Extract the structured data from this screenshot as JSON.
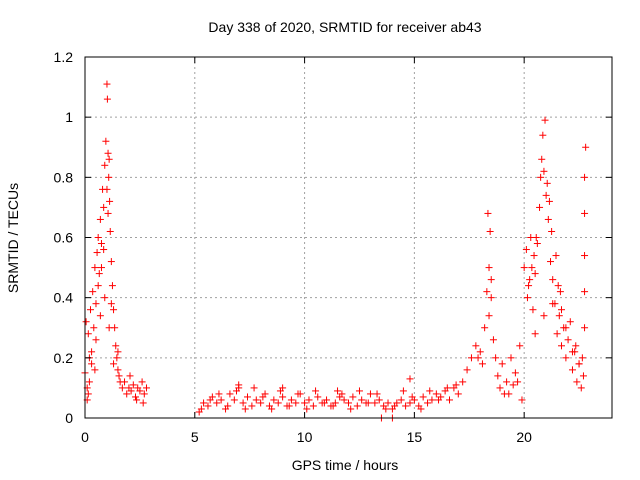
{
  "chart_data": {
    "type": "scatter",
    "title": "Day 338 of 2020, SRMTID for receiver ab43",
    "xlabel": "GPS time / hours",
    "ylabel": "SRMTID / TECUs",
    "xlim": [
      0,
      24
    ],
    "ylim": [
      0,
      1.2
    ],
    "xticks": [
      0,
      5,
      10,
      15,
      20
    ],
    "xtick_labels": [
      "0",
      "5",
      "10",
      "15",
      "20"
    ],
    "yticks": [
      0,
      0.2,
      0.4,
      0.6,
      0.8,
      1.0,
      1.2
    ],
    "ytick_labels": [
      "0",
      "0.2",
      "0.4",
      "0.6",
      "0.8",
      "1",
      "1.2"
    ],
    "grid": true,
    "marker": "+",
    "color": "#ff0000",
    "series": [
      {
        "name": "SRMTID",
        "x": [
          0.0,
          0.05,
          0.1,
          0.15,
          0.2,
          0.25,
          0.3,
          0.35,
          0.4,
          0.45,
          0.5,
          0.55,
          0.6,
          0.65,
          0.7,
          0.75,
          0.8,
          0.85,
          0.9,
          0.95,
          1.0,
          1.02,
          1.05,
          1.08,
          1.1,
          1.12,
          1.15,
          1.2,
          1.25,
          1.3,
          1.35,
          1.4,
          1.45,
          1.5,
          1.55,
          1.6,
          1.7,
          1.8,
          1.9,
          2.0,
          2.1,
          2.2,
          2.3,
          2.4,
          2.5,
          2.6,
          2.7,
          2.8,
          0.1,
          0.2,
          0.3,
          0.5,
          0.7,
          0.9,
          1.1,
          1.3,
          0.15,
          0.45,
          0.85,
          1.05,
          0.6,
          0.75,
          1.0,
          1.2,
          1.5,
          2.05,
          2.35,
          2.65,
          5.2,
          5.4,
          5.6,
          5.8,
          6.0,
          6.2,
          6.4,
          6.6,
          6.8,
          7.0,
          7.2,
          7.4,
          7.6,
          7.8,
          8.0,
          8.2,
          8.4,
          8.6,
          8.8,
          9.0,
          9.2,
          9.4,
          9.6,
          9.8,
          10.0,
          10.2,
          10.4,
          10.6,
          10.8,
          11.0,
          11.2,
          11.4,
          11.6,
          11.8,
          12.0,
          12.2,
          12.4,
          12.6,
          12.8,
          13.0,
          13.2,
          13.4,
          13.6,
          13.8,
          14.0,
          14.2,
          14.4,
          14.6,
          14.8,
          15.0,
          15.2,
          15.4,
          15.6,
          15.8,
          16.0,
          16.2,
          16.4,
          16.6,
          16.8,
          17.0,
          5.3,
          5.7,
          6.1,
          6.5,
          6.9,
          7.3,
          7.7,
          8.1,
          8.5,
          8.9,
          9.3,
          9.7,
          10.1,
          10.5,
          10.9,
          11.3,
          11.7,
          12.1,
          12.5,
          12.9,
          13.3,
          13.7,
          14.1,
          14.5,
          14.9,
          15.3,
          15.7,
          16.1,
          16.5,
          16.9,
          14.8,
          7.0,
          9.0,
          11.5,
          13.5,
          14.0,
          17.2,
          17.4,
          17.6,
          17.8,
          18.0,
          18.2,
          18.3,
          18.4,
          18.5,
          18.6,
          18.7,
          18.8,
          19.0,
          19.2,
          19.4,
          19.6,
          19.8,
          20.0,
          20.1,
          20.2,
          20.3,
          20.4,
          20.5,
          20.6,
          20.7,
          20.8,
          20.9,
          21.0,
          21.1,
          21.2,
          21.3,
          21.4,
          21.5,
          21.6,
          21.7,
          21.8,
          21.9,
          22.0,
          22.1,
          22.2,
          22.3,
          22.4,
          22.5,
          22.6,
          22.7,
          22.8,
          18.35,
          18.45,
          18.4,
          18.5,
          20.15,
          20.35,
          20.55,
          20.75,
          20.85,
          20.95,
          21.05,
          21.15,
          21.25,
          21.45,
          21.65,
          20.5,
          20.9,
          21.3,
          21.7,
          22.2,
          22.5,
          22.75,
          22.75,
          22.75,
          22.75,
          22.75,
          19.1,
          19.5,
          19.9,
          17.9,
          18.1,
          18.9,
          19.3,
          19.7,
          21.9,
          22.35,
          22.65,
          20.25,
          20.45,
          21.55
        ],
        "y": [
          0.15,
          0.32,
          0.1,
          0.28,
          0.2,
          0.36,
          0.18,
          0.42,
          0.3,
          0.5,
          0.38,
          0.55,
          0.6,
          0.48,
          0.66,
          0.58,
          0.76,
          0.7,
          0.84,
          0.92,
          1.11,
          1.06,
          0.88,
          0.8,
          0.86,
          0.72,
          0.62,
          0.52,
          0.44,
          0.36,
          0.3,
          0.24,
          0.2,
          0.16,
          0.14,
          0.12,
          0.1,
          0.12,
          0.08,
          0.1,
          0.09,
          0.11,
          0.07,
          0.1,
          0.09,
          0.12,
          0.08,
          0.1,
          0.06,
          0.12,
          0.22,
          0.26,
          0.34,
          0.4,
          0.3,
          0.18,
          0.08,
          0.16,
          0.56,
          0.68,
          0.44,
          0.5,
          0.76,
          0.38,
          0.22,
          0.14,
          0.06,
          0.05,
          0.02,
          0.05,
          0.04,
          0.07,
          0.05,
          0.06,
          0.03,
          0.08,
          0.06,
          0.1,
          0.05,
          0.07,
          0.04,
          0.06,
          0.05,
          0.08,
          0.04,
          0.06,
          0.05,
          0.07,
          0.04,
          0.06,
          0.05,
          0.08,
          0.05,
          0.06,
          0.04,
          0.07,
          0.05,
          0.06,
          0.04,
          0.05,
          0.07,
          0.06,
          0.05,
          0.07,
          0.04,
          0.06,
          0.05,
          0.08,
          0.05,
          0.06,
          0.04,
          0.05,
          0.03,
          0.05,
          0.06,
          0.04,
          0.05,
          0.06,
          0.04,
          0.07,
          0.05,
          0.06,
          0.08,
          0.07,
          0.09,
          0.06,
          0.1,
          0.08,
          0.03,
          0.06,
          0.08,
          0.04,
          0.09,
          0.03,
          0.1,
          0.07,
          0.03,
          0.09,
          0.04,
          0.08,
          0.03,
          0.09,
          0.05,
          0.04,
          0.08,
          0.03,
          0.09,
          0.05,
          0.08,
          0.03,
          0.04,
          0.09,
          0.07,
          0.03,
          0.09,
          0.06,
          0.1,
          0.11,
          0.13,
          0.11,
          0.1,
          0.09,
          0.0,
          0.0,
          0.12,
          0.16,
          0.2,
          0.24,
          0.22,
          0.3,
          0.42,
          0.5,
          0.46,
          0.26,
          0.2,
          0.14,
          0.18,
          0.12,
          0.2,
          0.15,
          0.24,
          0.5,
          0.56,
          0.44,
          0.6,
          0.36,
          0.48,
          0.58,
          0.7,
          0.86,
          0.82,
          0.74,
          0.66,
          0.52,
          0.46,
          0.38,
          0.28,
          0.34,
          0.24,
          0.3,
          0.2,
          0.26,
          0.32,
          0.16,
          0.22,
          0.12,
          0.18,
          0.1,
          0.14,
          0.9,
          0.68,
          0.62,
          0.34,
          0.4,
          0.4,
          0.5,
          0.6,
          0.8,
          0.94,
          0.99,
          0.78,
          0.72,
          0.62,
          0.54,
          0.42,
          0.28,
          0.34,
          0.38,
          0.36,
          0.22,
          0.18,
          0.8,
          0.68,
          0.54,
          0.42,
          0.3,
          0.08,
          0.11,
          0.06,
          0.2,
          0.18,
          0.1,
          0.08,
          0.12,
          0.3,
          0.24,
          0.2,
          0.46,
          0.54,
          0.44
        ]
      }
    ]
  }
}
